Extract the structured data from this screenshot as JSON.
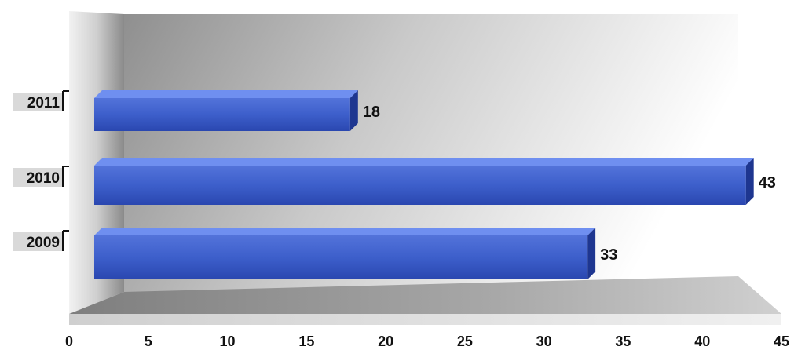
{
  "chart_data": {
    "type": "bar",
    "orientation": "horizontal",
    "title": "",
    "xlabel": "",
    "ylabel": "",
    "categories": [
      "2011",
      "2010",
      "2009"
    ],
    "values": [
      18,
      43,
      33
    ],
    "value_labels": [
      "18",
      "43",
      "33"
    ],
    "xlim": [
      0,
      45
    ],
    "x_ticks": [
      0,
      5,
      10,
      15,
      20,
      25,
      30,
      35,
      40,
      45
    ],
    "x_tick_labels": [
      "0",
      "5",
      "10",
      "15",
      "20",
      "25",
      "30",
      "35",
      "40",
      "45"
    ],
    "grid": false,
    "legend": "none",
    "style": "3d",
    "colors": {
      "bar": "#3a5cc8",
      "bar_light": "#6f8ff0",
      "bar_dark": "#1e3690",
      "wall": "#9a9a9a",
      "floor": "#8c8c8c"
    }
  }
}
